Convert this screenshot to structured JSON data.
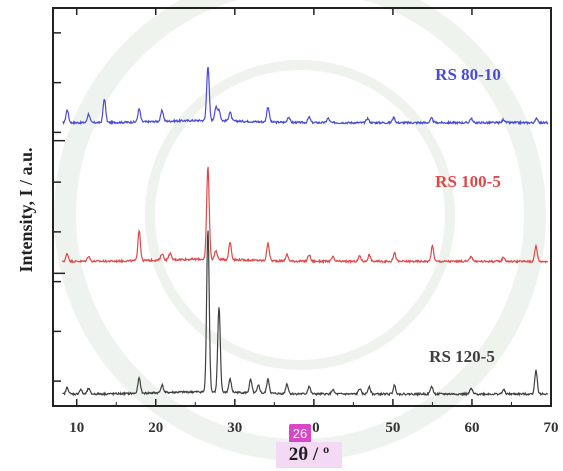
{
  "chart_data": {
    "type": "line",
    "xlabel": "2θ / º",
    "ylabel": "Intensity, I / a.u.",
    "xlim": [
      7,
      70
    ],
    "xticks": [
      10,
      20,
      30,
      40,
      50,
      60,
      70
    ],
    "xtick_labels": [
      "10",
      "20",
      "30",
      "",
      "50",
      "60",
      "70"
    ],
    "badge_text": "26",
    "series": [
      {
        "name": "RS 80-10",
        "color": "#4a4ad6",
        "baseline_offset": 2.0,
        "peaks": [
          [
            8.8,
            0.12
          ],
          [
            11.5,
            0.08
          ],
          [
            13.5,
            0.22
          ],
          [
            17.9,
            0.12
          ],
          [
            20.8,
            0.1
          ],
          [
            26.6,
            0.5
          ],
          [
            27.6,
            0.12
          ],
          [
            28.0,
            0.1
          ],
          [
            29.4,
            0.08
          ],
          [
            34.2,
            0.14
          ],
          [
            36.8,
            0.05
          ],
          [
            39.4,
            0.05
          ],
          [
            41.8,
            0.04
          ],
          [
            46.8,
            0.04
          ],
          [
            50.1,
            0.05
          ],
          [
            54.9,
            0.04
          ],
          [
            59.9,
            0.04
          ],
          [
            64.0,
            0.03
          ],
          [
            68.2,
            0.04
          ]
        ]
      },
      {
        "name": "RS 100-5",
        "color": "#e04848",
        "baseline_offset": 1.0,
        "peaks": [
          [
            8.8,
            0.07
          ],
          [
            11.5,
            0.05
          ],
          [
            17.9,
            0.28
          ],
          [
            20.8,
            0.06
          ],
          [
            21.8,
            0.06
          ],
          [
            26.6,
            0.85
          ],
          [
            27.6,
            0.08
          ],
          [
            29.4,
            0.16
          ],
          [
            34.2,
            0.16
          ],
          [
            36.6,
            0.06
          ],
          [
            39.4,
            0.06
          ],
          [
            42.4,
            0.04
          ],
          [
            45.8,
            0.05
          ],
          [
            47.0,
            0.06
          ],
          [
            50.2,
            0.08
          ],
          [
            55.0,
            0.14
          ],
          [
            59.9,
            0.05
          ],
          [
            64.0,
            0.04
          ],
          [
            68.1,
            0.14
          ]
        ]
      },
      {
        "name": "RS 120-5",
        "color": "#404040",
        "baseline_offset": 0.0,
        "peaks": [
          [
            8.8,
            0.06
          ],
          [
            10.5,
            0.04
          ],
          [
            11.5,
            0.05
          ],
          [
            17.9,
            0.14
          ],
          [
            20.8,
            0.07
          ],
          [
            26.6,
            1.5
          ],
          [
            28.0,
            0.78
          ],
          [
            29.4,
            0.12
          ],
          [
            32.0,
            0.12
          ],
          [
            33.0,
            0.07
          ],
          [
            34.2,
            0.13
          ],
          [
            36.6,
            0.09
          ],
          [
            39.4,
            0.07
          ],
          [
            42.4,
            0.04
          ],
          [
            45.8,
            0.05
          ],
          [
            47.0,
            0.07
          ],
          [
            50.2,
            0.08
          ],
          [
            54.9,
            0.07
          ],
          [
            59.9,
            0.05
          ],
          [
            64.0,
            0.04
          ],
          [
            68.1,
            0.22
          ]
        ]
      }
    ]
  }
}
